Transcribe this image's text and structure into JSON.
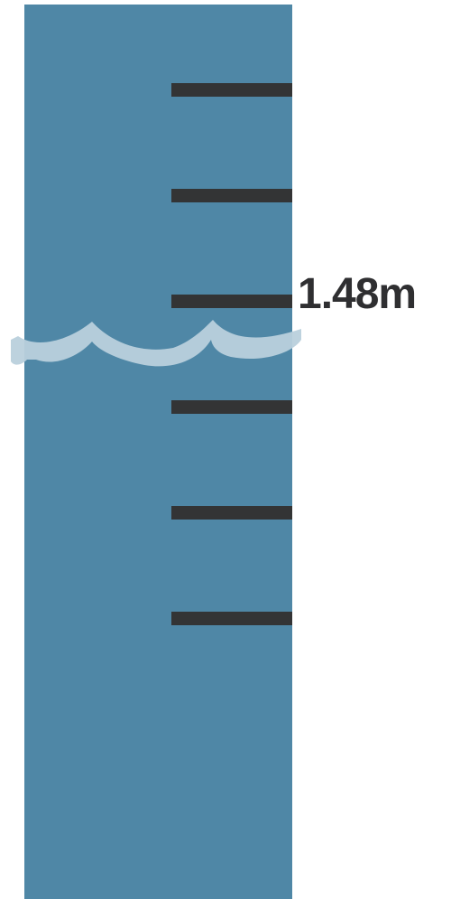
{
  "water_level": {
    "label": "1.48m"
  },
  "colors": {
    "background": "#ffffff",
    "staff_gauge": "#4f87a6",
    "tick_marks": "#333435",
    "water_wave": "#b9d0dc",
    "label_text": "#2f2f31"
  },
  "staff_gauge": {
    "tick_count": 6
  }
}
